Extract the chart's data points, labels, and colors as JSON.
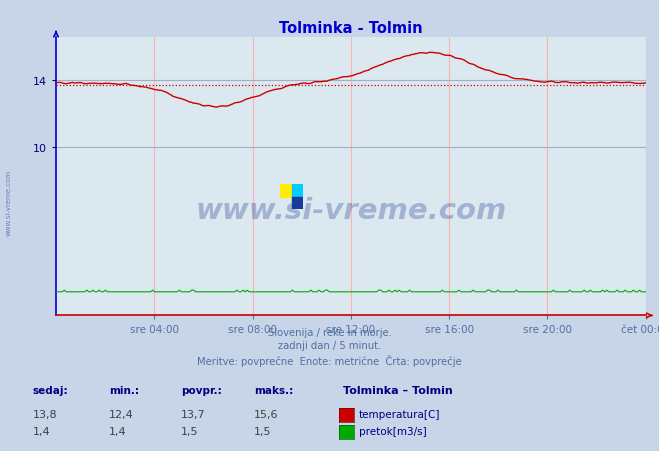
{
  "title": "Tolminka - Tolmin",
  "title_color": "#0000cc",
  "bg_color": "#c8d4e8",
  "plot_bg_color": "#dce8f0",
  "grid_color_v": "#ffb0b0",
  "grid_color_h": "#a0b0c8",
  "axis_color_x": "#cc0000",
  "axis_color_y": "#0000cc",
  "temp_color": "#cc0000",
  "flow_color": "#00aa00",
  "avg_line_color": "#cc0000",
  "avg_temp": 13.7,
  "x_tick_labels": [
    "sre 04:00",
    "sre 08:00",
    "sre 12:00",
    "sre 16:00",
    "sre 20:00",
    "čet 00:00"
  ],
  "x_tick_fracs": [
    0.1667,
    0.3333,
    0.5,
    0.6667,
    0.8333,
    1.0
  ],
  "ylim": [
    0,
    16.5
  ],
  "yticks": [
    10,
    14
  ],
  "subtitle_lines": [
    "Slovenija / reke in morje.",
    "zadnji dan / 5 minut.",
    "Meritve: povprečne  Enote: metrične  Črta: povprečje"
  ],
  "subtitle_color": "#5070a0",
  "legend_title": "Tolminka – Tolmin",
  "legend_title_color": "#000080",
  "legend_color": "#000080",
  "table_header": [
    "sedaj:",
    "min.:",
    "povpr.:",
    "maks.:"
  ],
  "table_temp": [
    "13,8",
    "12,4",
    "13,7",
    "15,6"
  ],
  "table_flow": [
    "1,4",
    "1,4",
    "1,5",
    "1,5"
  ],
  "watermark_text": "www.si-vreme.com",
  "watermark_color": "#1a3a8a",
  "watermark_alpha": 0.3,
  "left_label": "www.si-vreme.com",
  "left_label_color": "#5070a0",
  "figsize": [
    6.59,
    4.52
  ],
  "dpi": 100
}
